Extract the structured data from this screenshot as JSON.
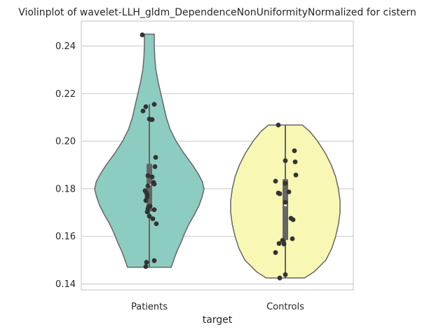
{
  "chart_data": {
    "type": "violin",
    "title": "Violinplot of wavelet-LLH_gldm_DependenceNonUniformityNormalized for cistern",
    "xlabel": "target",
    "ylabel": "",
    "categories": [
      "Patients",
      "Controls"
    ],
    "ylim": [
      0.1375,
      0.2505
    ],
    "yticks": [
      0.14,
      0.16,
      0.18,
      0.2,
      0.22,
      0.24
    ],
    "ytick_labels": [
      "0.14",
      "0.16",
      "0.18",
      "0.20",
      "0.22",
      "0.24"
    ],
    "grid": true,
    "colors": {
      "Patients": "#8dccc0",
      "Controls": "#f8f7b4",
      "outline": "#666666",
      "points": "#333333",
      "grid": "#cccccc",
      "box": "#666666"
    },
    "violins": [
      {
        "name": "Patients",
        "range": [
          0.147,
          0.245
        ],
        "quartiles": [
          0.1705,
          0.1815,
          0.1905
        ],
        "whiskers": [
          0.147,
          0.2155
        ],
        "profile": [
          [
            0.147,
            0.4
          ],
          [
            0.149,
            0.43
          ],
          [
            0.151,
            0.46
          ],
          [
            0.154,
            0.51
          ],
          [
            0.157,
            0.57
          ],
          [
            0.161,
            0.64
          ],
          [
            0.165,
            0.72
          ],
          [
            0.169,
            0.82
          ],
          [
            0.173,
            0.91
          ],
          [
            0.177,
            0.97
          ],
          [
            0.18,
            1.0
          ],
          [
            0.183,
            0.97
          ],
          [
            0.186,
            0.9
          ],
          [
            0.19,
            0.79
          ],
          [
            0.195,
            0.63
          ],
          [
            0.2,
            0.49
          ],
          [
            0.205,
            0.38
          ],
          [
            0.21,
            0.31
          ],
          [
            0.215,
            0.26
          ],
          [
            0.22,
            0.21
          ],
          [
            0.225,
            0.16
          ],
          [
            0.23,
            0.12
          ],
          [
            0.235,
            0.1
          ],
          [
            0.24,
            0.09
          ],
          [
            0.245,
            0.09
          ]
        ],
        "points": [
          0.2447,
          0.2155,
          0.2145,
          0.2127,
          0.2093,
          0.2091,
          0.2091,
          0.1932,
          0.1893,
          0.1855,
          0.185,
          0.1827,
          0.182,
          0.1812,
          0.1792,
          0.1782,
          0.1773,
          0.1765,
          0.1751,
          0.1727,
          0.1724,
          0.1716,
          0.1712,
          0.1703,
          0.1685,
          0.1674,
          0.1653,
          0.1498,
          0.1491,
          0.1473
        ],
        "jitter": [
          -0.1,
          0.07,
          -0.05,
          -0.09,
          0.0,
          0.03,
          0.04,
          0.09,
          0.08,
          -0.02,
          0.04,
          0.06,
          0.07,
          -0.02,
          -0.06,
          -0.04,
          -0.03,
          -0.03,
          -0.05,
          0.01,
          -0.01,
          -0.02,
          0.07,
          -0.03,
          0.0,
          0.05,
          0.1,
          0.07,
          -0.04,
          -0.05
        ]
      },
      {
        "name": "Controls",
        "range": [
          0.1425,
          0.2068
        ],
        "quartiles": [
          0.1585,
          0.1732,
          0.184
        ],
        "whiskers": [
          0.1425,
          0.2068
        ],
        "profile": [
          [
            0.1425,
            0.35
          ],
          [
            0.145,
            0.52
          ],
          [
            0.15,
            0.74
          ],
          [
            0.155,
            0.85
          ],
          [
            0.16,
            0.92
          ],
          [
            0.165,
            0.97
          ],
          [
            0.17,
            1.0
          ],
          [
            0.175,
            1.0
          ],
          [
            0.18,
            0.97
          ],
          [
            0.185,
            0.92
          ],
          [
            0.19,
            0.84
          ],
          [
            0.195,
            0.73
          ],
          [
            0.2,
            0.59
          ],
          [
            0.204,
            0.45
          ],
          [
            0.2068,
            0.31
          ]
        ],
        "points": [
          0.2068,
          0.196,
          0.1918,
          0.1913,
          0.1858,
          0.1832,
          0.1823,
          0.1787,
          0.1782,
          0.1779,
          0.1743,
          0.1676,
          0.167,
          0.159,
          0.1583,
          0.1568,
          0.157,
          0.1532,
          0.1439,
          0.1425
        ],
        "jitter": [
          -0.1,
          0.13,
          0.0,
          0.14,
          0.15,
          -0.14,
          0.0,
          0.05,
          -0.1,
          -0.08,
          0.0,
          0.08,
          0.11,
          0.1,
          -0.04,
          -0.02,
          -0.09,
          -0.14,
          0.0,
          -0.08
        ]
      }
    ]
  }
}
